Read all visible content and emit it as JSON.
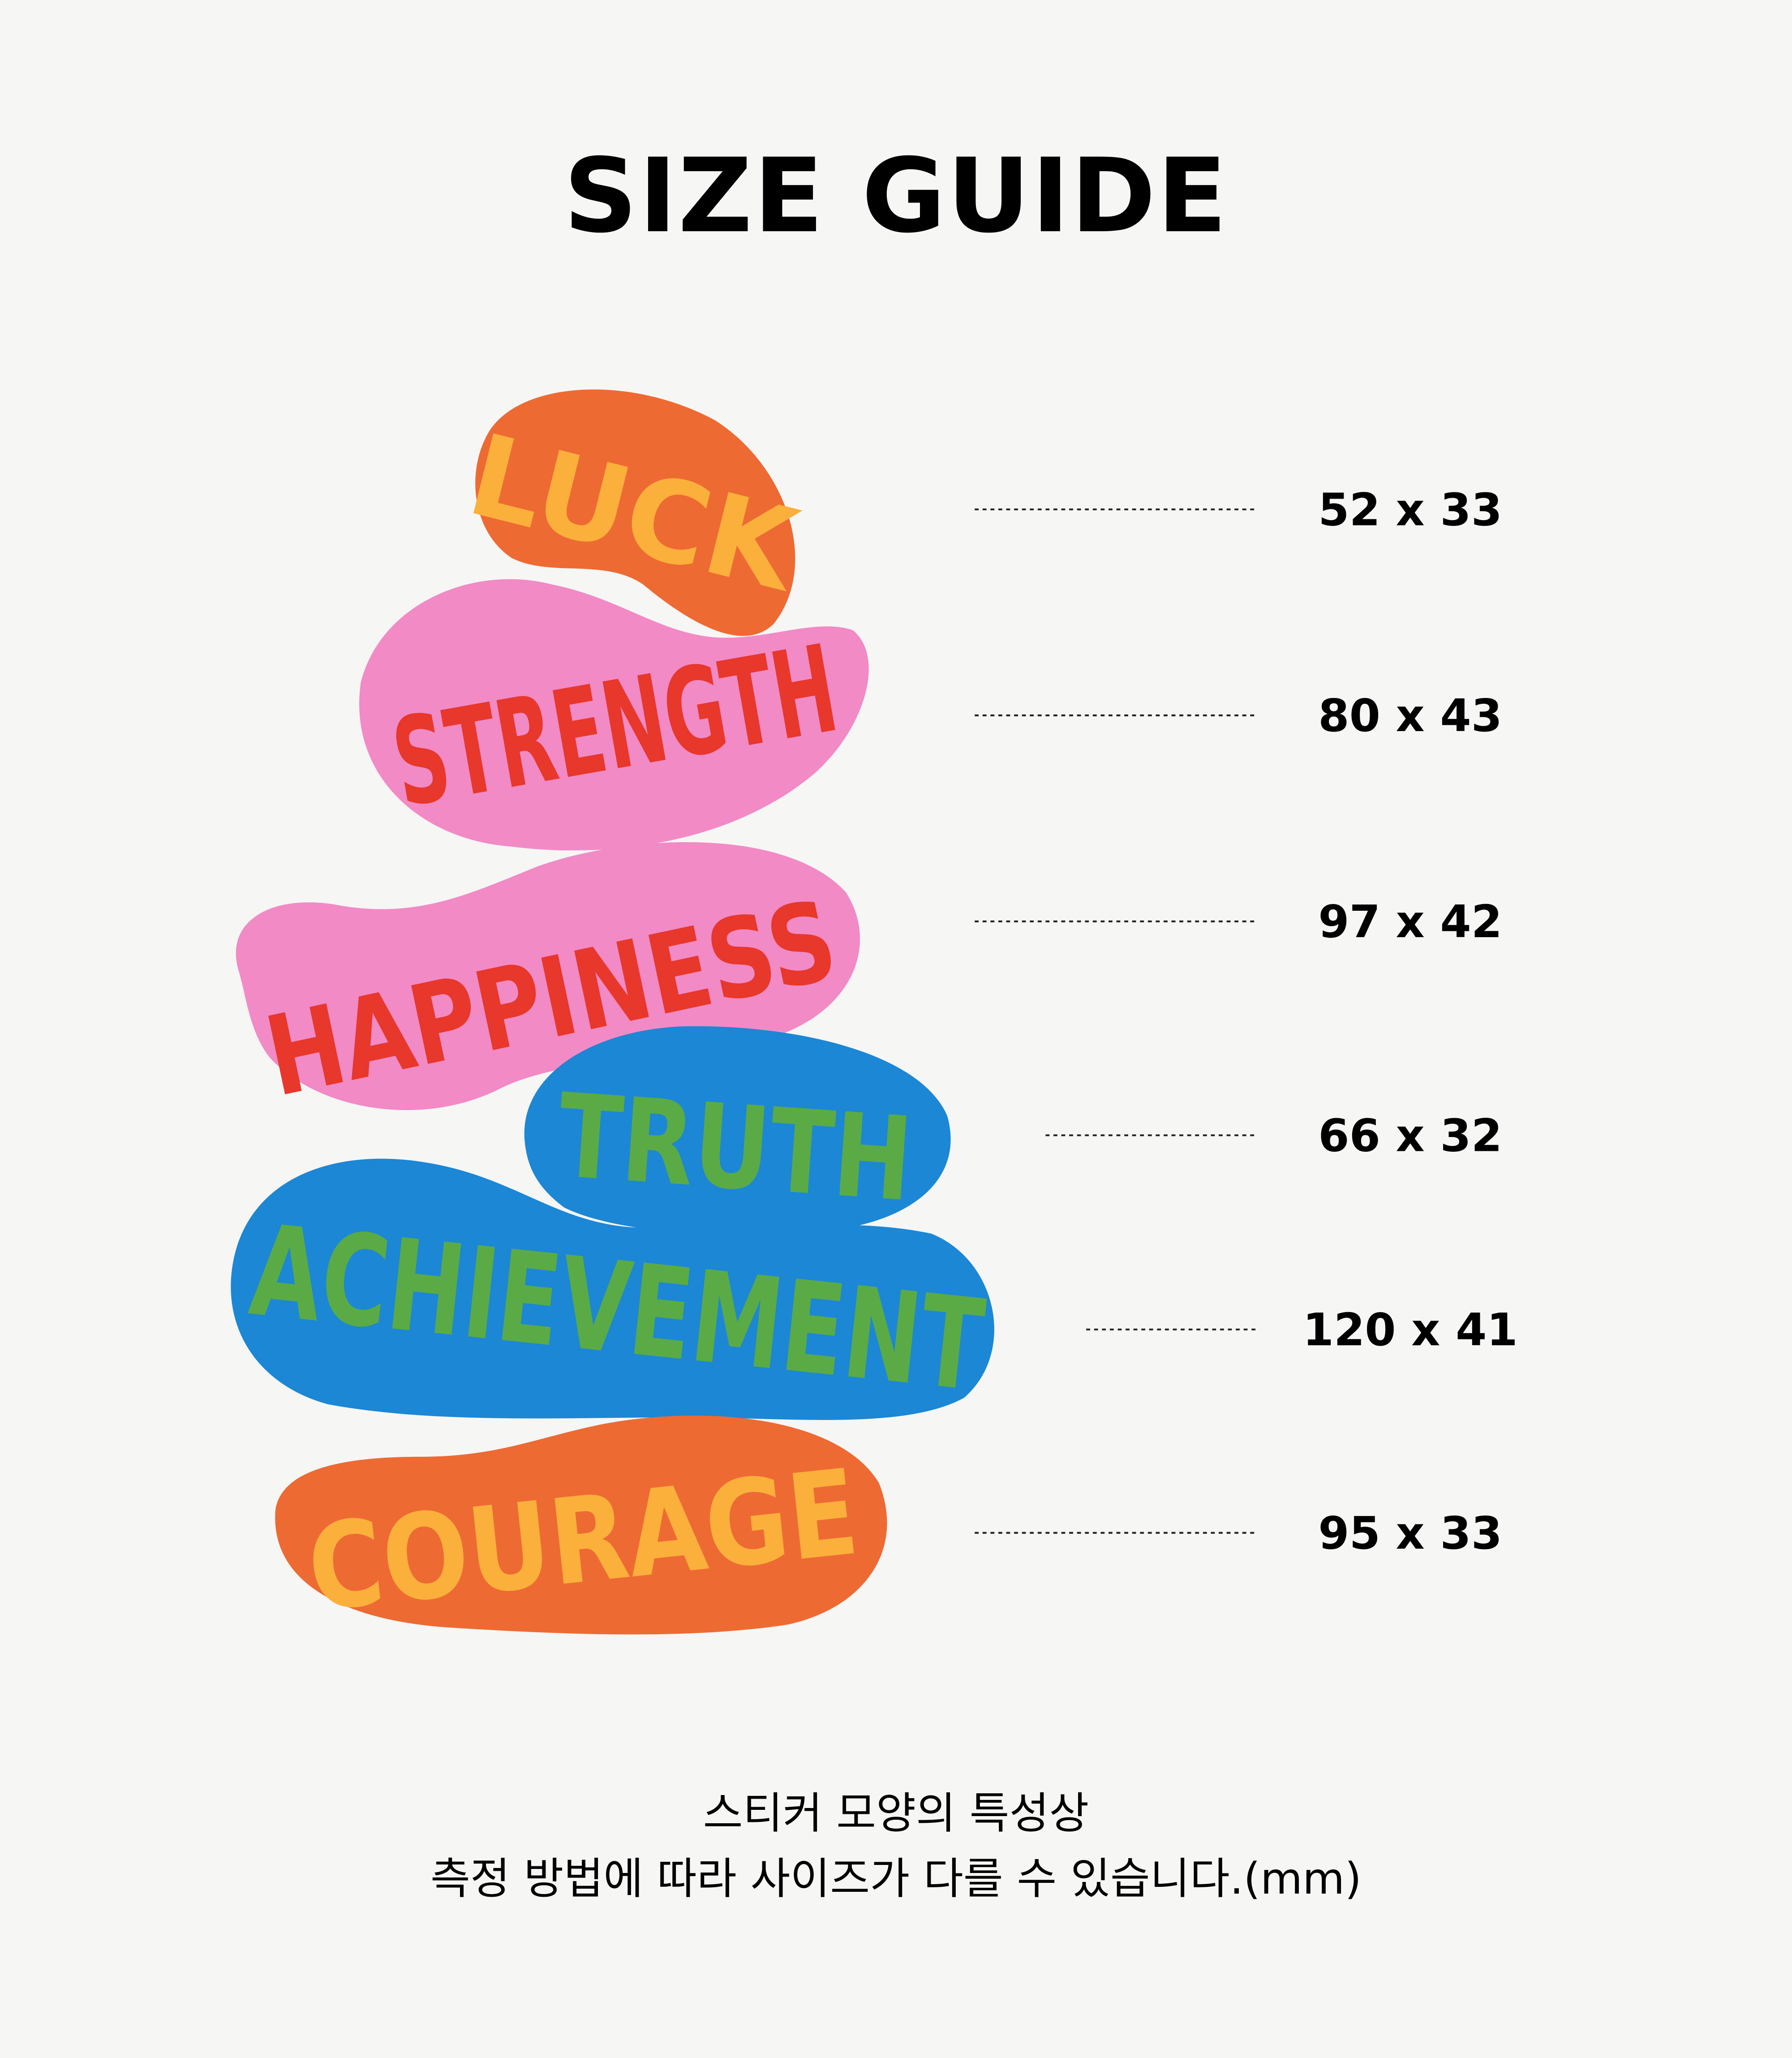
{
  "title": "SIZE GUIDE",
  "colors": {
    "background": "#f6f6f5",
    "orange": "#ee6a33",
    "yellow": "#fbb03b",
    "pink": "#f28ac6",
    "red": "#e8372b",
    "blue": "#1b87d5",
    "green": "#5aab45"
  },
  "stickers": [
    {
      "word": "LUCK",
      "size": "52 x 33"
    },
    {
      "word": "STRENGTH",
      "size": "80 x 43"
    },
    {
      "word": "HAPPINESS",
      "size": "97 x 42"
    },
    {
      "word": "TRUTH",
      "size": "66 x 32"
    },
    {
      "word": "ACHIEVEMENT",
      "size": "120 x 41"
    },
    {
      "word": "COURAGE",
      "size": "95 x 33"
    }
  ],
  "note": {
    "line1": "스티커 모양의 특성상",
    "line2": "측정 방법에 따라 사이즈가 다를 수 있습니다.(mm)"
  }
}
